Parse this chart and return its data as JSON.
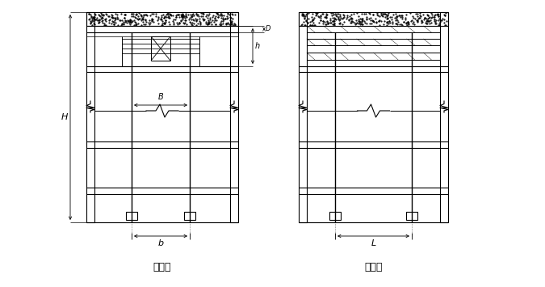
{
  "bg_color": "#ffffff",
  "line_color": "#000000",
  "title1": "断面图",
  "title2": "侧面图",
  "label_H": "H",
  "label_h": "h",
  "label_b": "b",
  "label_B": "B",
  "label_L": "L",
  "label_D": "D"
}
